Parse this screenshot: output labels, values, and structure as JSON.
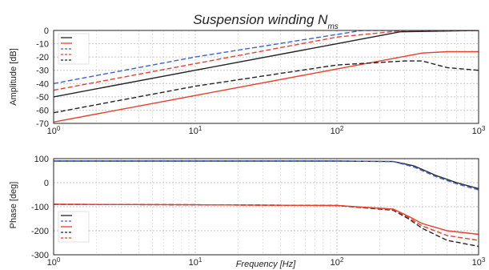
{
  "chart_data": [
    {
      "type": "line",
      "title": "Suspension winding N",
      "title_subscript": "ms",
      "xlabel": "",
      "ylabel": "Amplitude [dB]",
      "xscale": "log",
      "xlim": [
        1,
        1000
      ],
      "ylim": [
        -70,
        0
      ],
      "yticks": [
        0,
        -10,
        -20,
        -30,
        -40,
        -50,
        -60,
        -70
      ],
      "xticks": [
        1,
        10,
        100,
        1000
      ],
      "xtick_labels": [
        "10^0",
        "10^1",
        "10^2",
        "10^3"
      ],
      "grid": true,
      "legend_position": "top-left",
      "series": [
        {
          "color": "#222222",
          "dash": "solid",
          "x": [
            1,
            10,
            100,
            280,
            1000
          ],
          "y": [
            -50,
            -30,
            -10,
            -1,
            0
          ]
        },
        {
          "color": "#e8402a",
          "dash": "solid",
          "x": [
            1,
            10,
            100,
            400,
            600,
            1000
          ],
          "y": [
            -69,
            -49,
            -29,
            -17,
            -16,
            -16
          ]
        },
        {
          "color": "#3f5fd0",
          "dash": "dashed",
          "x": [
            1,
            10,
            100,
            150,
            1000
          ],
          "y": [
            -40,
            -20,
            -3,
            0,
            0
          ]
        },
        {
          "color": "#e8402a",
          "dash": "dashed",
          "x": [
            1,
            10,
            100,
            300,
            1000
          ],
          "y": [
            -45,
            -25,
            -5,
            0,
            0
          ]
        },
        {
          "color": "#222222",
          "dash": "dashed",
          "x": [
            1,
            10,
            100,
            300,
            400,
            600,
            1000
          ],
          "y": [
            -62,
            -42,
            -26,
            -23,
            -23,
            -28,
            -30
          ]
        }
      ]
    },
    {
      "type": "line",
      "title": "",
      "xlabel": "Frequency [Hz]",
      "ylabel": "Phase [deg]",
      "xscale": "log",
      "xlim": [
        1,
        1000
      ],
      "ylim": [
        -300,
        100
      ],
      "yticks": [
        100,
        0,
        -100,
        -200,
        -300
      ],
      "xticks": [
        1,
        10,
        100,
        1000
      ],
      "xtick_labels": [
        "10^0",
        "10^1",
        "10^2",
        "10^3"
      ],
      "grid": true,
      "legend_position": "bottom-left",
      "series": [
        {
          "color": "#222222",
          "dash": "solid",
          "x": [
            1,
            10,
            100,
            250,
            350,
            500,
            700,
            1000
          ],
          "y": [
            90,
            90,
            90,
            88,
            70,
            30,
            0,
            -25
          ]
        },
        {
          "color": "#3f5fd0",
          "dash": "dashed",
          "x": [
            1,
            10,
            100,
            250,
            350,
            500,
            700,
            1000
          ],
          "y": [
            90,
            90,
            90,
            88,
            65,
            25,
            -5,
            -30
          ]
        },
        {
          "color": "#e8402a",
          "dash": "solid",
          "x": [
            1,
            10,
            100,
            250,
            320,
            400,
            600,
            1000
          ],
          "y": [
            -90,
            -92,
            -95,
            -110,
            -140,
            -170,
            -200,
            -215
          ]
        },
        {
          "color": "#222222",
          "dash": "dashed",
          "x": [
            1,
            10,
            100,
            250,
            320,
            400,
            600,
            1000
          ],
          "y": [
            -90,
            -92,
            -95,
            -115,
            -150,
            -190,
            -240,
            -265
          ]
        },
        {
          "color": "#e8402a",
          "dash": "dashed",
          "x": [
            1,
            10,
            100,
            250,
            320,
            400,
            600,
            1000
          ],
          "y": [
            -90,
            -92,
            -95,
            -112,
            -145,
            -180,
            -220,
            -240
          ]
        }
      ]
    }
  ]
}
